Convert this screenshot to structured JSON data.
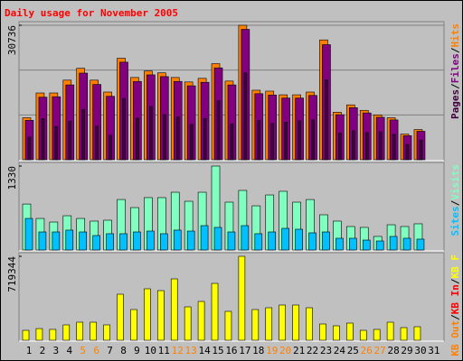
{
  "chart_data": [
    {
      "type": "bar",
      "title": "Daily usage for November 2005",
      "title_color": "#ff0000",
      "ylim": [
        0,
        30736
      ],
      "yticks": [
        30736
      ],
      "grid": true,
      "legend_separator": "/",
      "series": [
        {
          "name": "Hits",
          "color": "#ff8000",
          "values": [
            9600,
            15260,
            15260,
            18190,
            20900,
            18190,
            15470,
            23200,
            18800,
            20280,
            19860,
            18800,
            17770,
            18600,
            21950,
            17980,
            30736,
            15890,
            15680,
            14840,
            14840,
            15470,
            27390,
            10870,
            12540,
            11290,
            10240,
            9600,
            5850,
            6900,
            null
          ]
        },
        {
          "name": "Files",
          "color": "#800080",
          "values": [
            9000,
            14300,
            14400,
            17100,
            19800,
            17200,
            14500,
            22300,
            17900,
            19400,
            19000,
            17900,
            16900,
            17700,
            21000,
            17100,
            29800,
            15100,
            14800,
            14100,
            14100,
            14700,
            26300,
            10300,
            11900,
            10700,
            9700,
            9100,
            5500,
            6500,
            null
          ]
        },
        {
          "name": "Pages",
          "color": "#400040",
          "values": [
            5200,
            9400,
            7600,
            8800,
            11500,
            7700,
            5600,
            14000,
            9500,
            12200,
            10300,
            9800,
            8100,
            9400,
            13500,
            8200,
            19800,
            9000,
            8300,
            8600,
            8900,
            9100,
            18300,
            6100,
            6600,
            6200,
            6400,
            5800,
            3500,
            4500,
            null
          ]
        }
      ]
    },
    {
      "type": "bar",
      "ylim": [
        0,
        1330
      ],
      "yticks": [
        1330
      ],
      "grid": false,
      "legend_separator": "/",
      "series": [
        {
          "name": "Visits",
          "color": "#80ffc0",
          "values": [
            728,
            500,
            443,
            543,
            500,
            458,
            472,
            800,
            672,
            830,
            830,
            915,
            772,
            915,
            1330,
            758,
            944,
            700,
            872,
            930,
            758,
            800,
            558,
            458,
            372,
            358,
            215,
            400,
            372,
            415,
            null
          ]
        },
        {
          "name": "Sites",
          "color": "#00c0ff",
          "values": [
            500,
            286,
            286,
            315,
            286,
            229,
            258,
            258,
            286,
            300,
            258,
            315,
            300,
            386,
            358,
            286,
            386,
            258,
            286,
            343,
            329,
            272,
            286,
            186,
            186,
            157,
            143,
            215,
            186,
            172,
            null
          ]
        }
      ]
    },
    {
      "type": "bar",
      "ylim": [
        0,
        719344
      ],
      "yticks": [
        719344
      ],
      "grid": false,
      "legend_separator": "/",
      "categories": [
        "1",
        "2",
        "3",
        "4",
        "5",
        "6",
        "7",
        "8",
        "9",
        "10",
        "11",
        "12",
        "13",
        "14",
        "15",
        "16",
        "17",
        "18",
        "19",
        "20",
        "21",
        "22",
        "23",
        "24",
        "25",
        "26",
        "27",
        "28",
        "29",
        "30",
        "31"
      ],
      "category_colors": [
        "#000000",
        "#000000",
        "#000000",
        "#000000",
        "#ff8000",
        "#ff8000",
        "#000000",
        "#000000",
        "#000000",
        "#000000",
        "#000000",
        "#ff8000",
        "#ff8000",
        "#000000",
        "#000000",
        "#000000",
        "#000000",
        "#000000",
        "#ff8000",
        "#ff8000",
        "#000000",
        "#000000",
        "#000000",
        "#000000",
        "#000000",
        "#ff8000",
        "#ff8000",
        "#000000",
        "#000000",
        "#000000",
        "#000000"
      ],
      "series": [
        {
          "name": "KB F",
          "color": "#ffff00",
          "values": [
            85000,
            100000,
            93000,
            131500,
            154700,
            154700,
            131500,
            394500,
            263000,
            440900,
            425400,
            526000,
            286200,
            332600,
            487300,
            247500,
            719344,
            263000,
            278500,
            301700,
            301700,
            278500,
            139200,
            123800,
            147000,
            85000,
            93000,
            154700,
            108300,
            116000,
            null
          ]
        }
      ],
      "legend": [
        {
          "name": "KB In",
          "color": "#ff0000"
        },
        {
          "name": "KB Out",
          "color": "#ff8000"
        }
      ]
    }
  ]
}
